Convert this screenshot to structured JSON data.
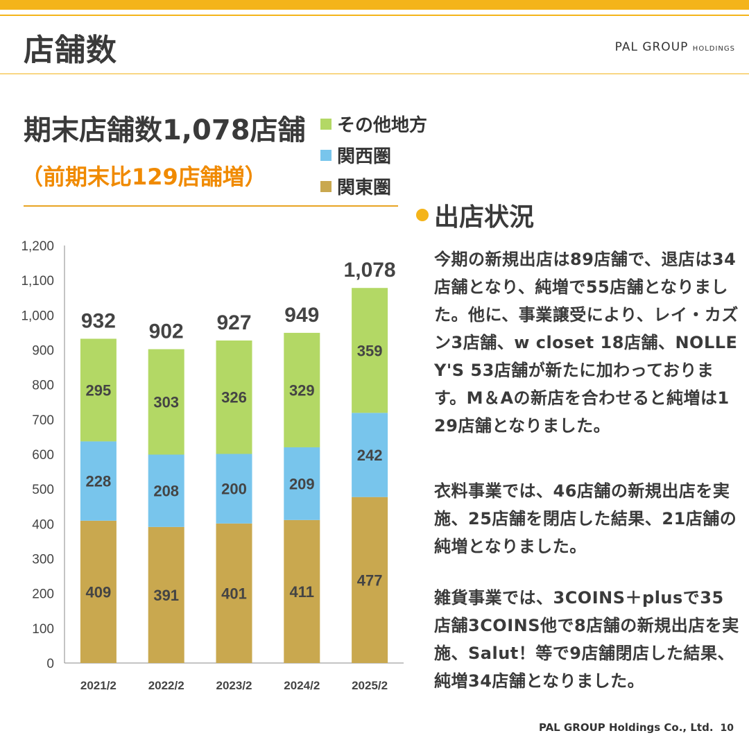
{
  "colors": {
    "accent": "#f4b41a",
    "orange": "#f08a00",
    "rule": "#e8a422",
    "kanto": "#c9a84f",
    "kansai": "#78c5ec",
    "other": "#b3d865",
    "axis": "#888888"
  },
  "header": {
    "title": "店舗数",
    "brand": "PAL GROUP",
    "brand_suffix": "HOLDINGS"
  },
  "headline": "期末店舗数1,078店舗",
  "subline": "（前期末比129店舗増）",
  "legend": [
    {
      "label": "その他地方",
      "color": "#b3d865"
    },
    {
      "label": "関西圏",
      "color": "#78c5ec"
    },
    {
      "label": "関東圏",
      "color": "#c9a84f"
    }
  ],
  "chart_data": {
    "type": "bar",
    "stacked": true,
    "categories": [
      "2021/2",
      "2022/2",
      "2023/2",
      "2024/2",
      "2025/2"
    ],
    "series": [
      {
        "name": "関東圏",
        "values": [
          409,
          391,
          401,
          411,
          477
        ]
      },
      {
        "name": "関西圏",
        "values": [
          228,
          208,
          200,
          209,
          242
        ]
      },
      {
        "name": "その他地方",
        "values": [
          295,
          303,
          326,
          329,
          359
        ]
      }
    ],
    "totals": [
      932,
      902,
      927,
      949,
      1078
    ],
    "total_labels": [
      "932",
      "902",
      "927",
      "949",
      "1,078"
    ],
    "yticks": [
      "0",
      "100",
      "200",
      "300",
      "400",
      "500",
      "600",
      "700",
      "800",
      "900",
      "1,000",
      "1,100",
      "1,200"
    ],
    "ylim": [
      0,
      1200
    ],
    "title": "",
    "xlabel": "",
    "ylabel": ""
  },
  "section": {
    "title": "出店状況",
    "paragraphs": [
      "今期の新規出店は89店舗で、退店は34店舗となり、純増で55店舗となりました。他に、事業譲受により、レイ・カズン3店舗、w closet 18店舗、NOLLE Y'S 53店舗が新たに加わっております。M＆Aの新店を合わせると純増は129店舗となりました。",
      "衣料事業では、46店舗の新規出店を実施、25店舗を閉店した結果、21店舗の純増となりました。",
      "雑貨事業では、3COINS＋plusで35店舗3COINS他で8店舗の新規出店を実施、Salut！等で9店舗閉店した結果、純増34店舗となりました。"
    ]
  },
  "footer": {
    "company": "PAL GROUP Holdings Co., Ltd.",
    "page": "10"
  }
}
